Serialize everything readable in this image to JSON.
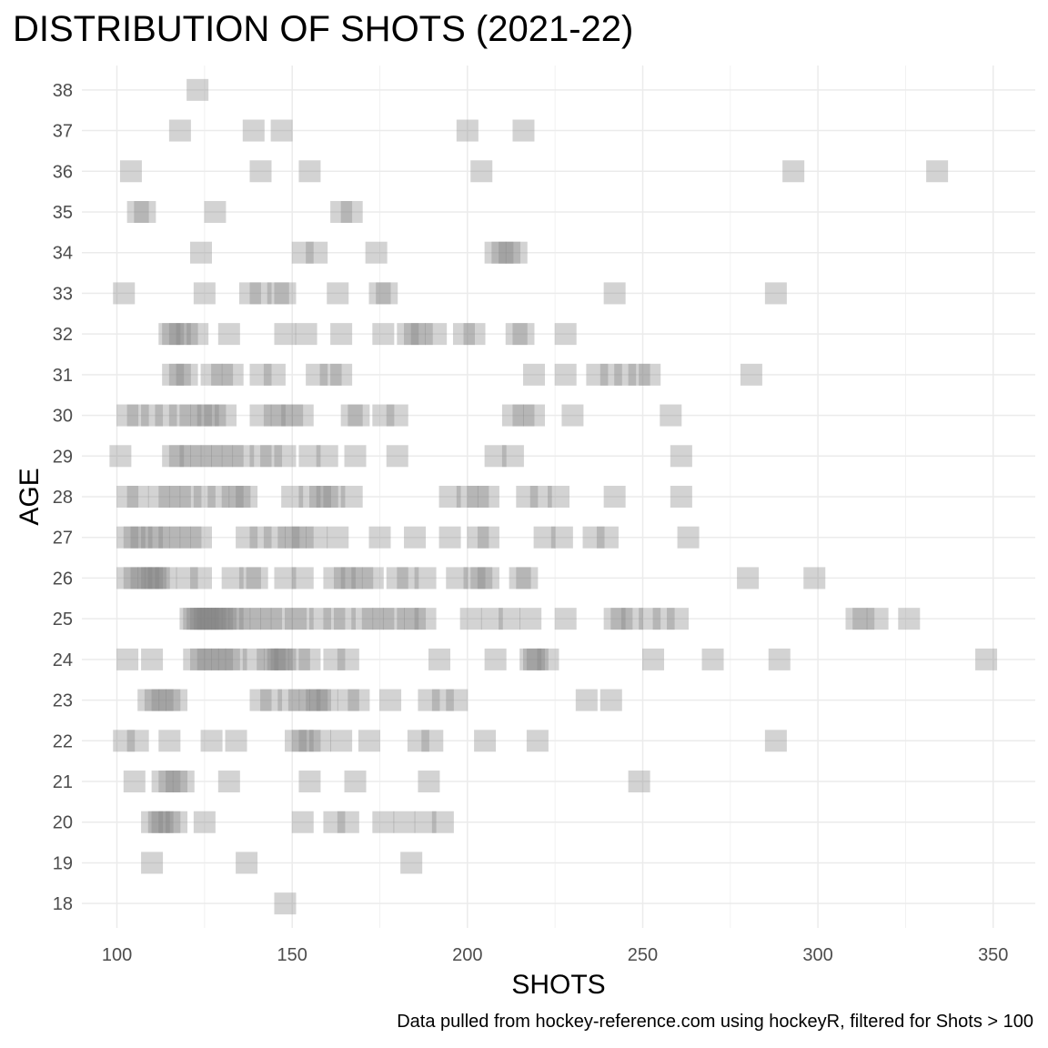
{
  "chart_data": {
    "type": "scatter",
    "title": "DISTRIBUTION OF SHOTS (2021-22)",
    "xlabel": "SHOTS",
    "ylabel": "AGE",
    "caption": "Data pulled from hockey-reference.com using hockeyR, filtered for Shots > 100",
    "xlim": [
      90,
      362
    ],
    "ylim": [
      17.4,
      38.6
    ],
    "x_ticks": [
      100,
      150,
      200,
      250,
      300,
      350
    ],
    "y_ticks": [
      18,
      19,
      20,
      21,
      22,
      23,
      24,
      25,
      26,
      27,
      28,
      29,
      30,
      31,
      32,
      33,
      34,
      35,
      36,
      37,
      38
    ],
    "grid": true,
    "marker": "square",
    "marker_color": "#808080",
    "marker_opacity": 0.35,
    "points_by_age": {
      "18": [
        148
      ],
      "19": [
        110,
        137,
        184
      ],
      "20": [
        110,
        112,
        113,
        115,
        117,
        125,
        153,
        162,
        166,
        176,
        182,
        188,
        193
      ],
      "21": [
        105,
        113,
        115,
        117,
        119,
        132,
        155,
        168,
        189,
        249
      ],
      "22": [
        102,
        106,
        115,
        127,
        134,
        151,
        153,
        155,
        158,
        164,
        172,
        186,
        190,
        205,
        220,
        288
      ],
      "23": [
        109,
        111,
        113,
        115,
        117,
        141,
        144,
        149,
        152,
        155,
        157,
        158,
        160,
        166,
        169,
        178,
        189,
        193,
        197,
        234,
        241
      ],
      "24": [
        103,
        110,
        122,
        124,
        126,
        128,
        130,
        132,
        134,
        139,
        143,
        145,
        146,
        147,
        148,
        152,
        155,
        162,
        166,
        192,
        208,
        218,
        219,
        220,
        223,
        253,
        270,
        289,
        348
      ],
      "25": [
        121,
        122,
        123,
        124,
        125,
        126,
        127,
        128,
        129,
        130,
        131,
        133,
        135,
        138,
        141,
        144,
        147,
        151,
        153,
        158,
        162,
        165,
        170,
        173,
        176,
        179,
        183,
        185,
        188,
        201,
        207,
        212,
        218,
        228,
        242,
        244,
        247,
        252,
        256,
        260,
        311,
        313,
        317,
        326
      ],
      "26": [
        103,
        105,
        107,
        109,
        110,
        111,
        112,
        114,
        120,
        124,
        133,
        138,
        140,
        148,
        153,
        162,
        165,
        167,
        170,
        173,
        180,
        183,
        188,
        197,
        202,
        204,
        206,
        215,
        217,
        280,
        299
      ],
      "27": [
        103,
        105,
        107,
        110,
        112,
        115,
        118,
        121,
        124,
        137,
        141,
        145,
        149,
        151,
        153,
        157,
        163,
        175,
        185,
        195,
        203,
        206,
        222,
        227,
        236,
        240,
        263
      ],
      "28": [
        103,
        106,
        112,
        115,
        118,
        121,
        125,
        129,
        133,
        135,
        137,
        150,
        155,
        158,
        160,
        162,
        167,
        195,
        200,
        203,
        206,
        217,
        221,
        226,
        242,
        261
      ],
      "29": [
        101,
        116,
        118,
        121,
        124,
        127,
        130,
        133,
        136,
        141,
        144,
        148,
        155,
        160,
        168,
        180,
        208,
        213,
        261
      ],
      "30": [
        103,
        106,
        110,
        114,
        118,
        121,
        124,
        126,
        128,
        131,
        141,
        145,
        147,
        150,
        153,
        167,
        169,
        176,
        180,
        213,
        216,
        219,
        230,
        258
      ],
      "31": [
        116,
        118,
        120,
        127,
        130,
        133,
        141,
        145,
        157,
        161,
        164,
        219,
        228,
        237,
        241,
        245,
        249,
        252,
        281
      ],
      "32": [
        115,
        116,
        118,
        120,
        123,
        132,
        148,
        154,
        164,
        176,
        183,
        185,
        187,
        191,
        199,
        202,
        214,
        216,
        228
      ],
      "33": [
        102,
        125,
        138,
        141,
        146,
        148,
        163,
        175,
        177,
        242,
        288
      ],
      "34": [
        124,
        153,
        157,
        174,
        208,
        210,
        212,
        214
      ],
      "35": [
        106,
        108,
        128,
        164,
        167
      ],
      "36": [
        104,
        141,
        155,
        204,
        293,
        334
      ],
      "37": [
        118,
        139,
        147,
        200,
        216
      ],
      "38": [
        123
      ]
    }
  }
}
